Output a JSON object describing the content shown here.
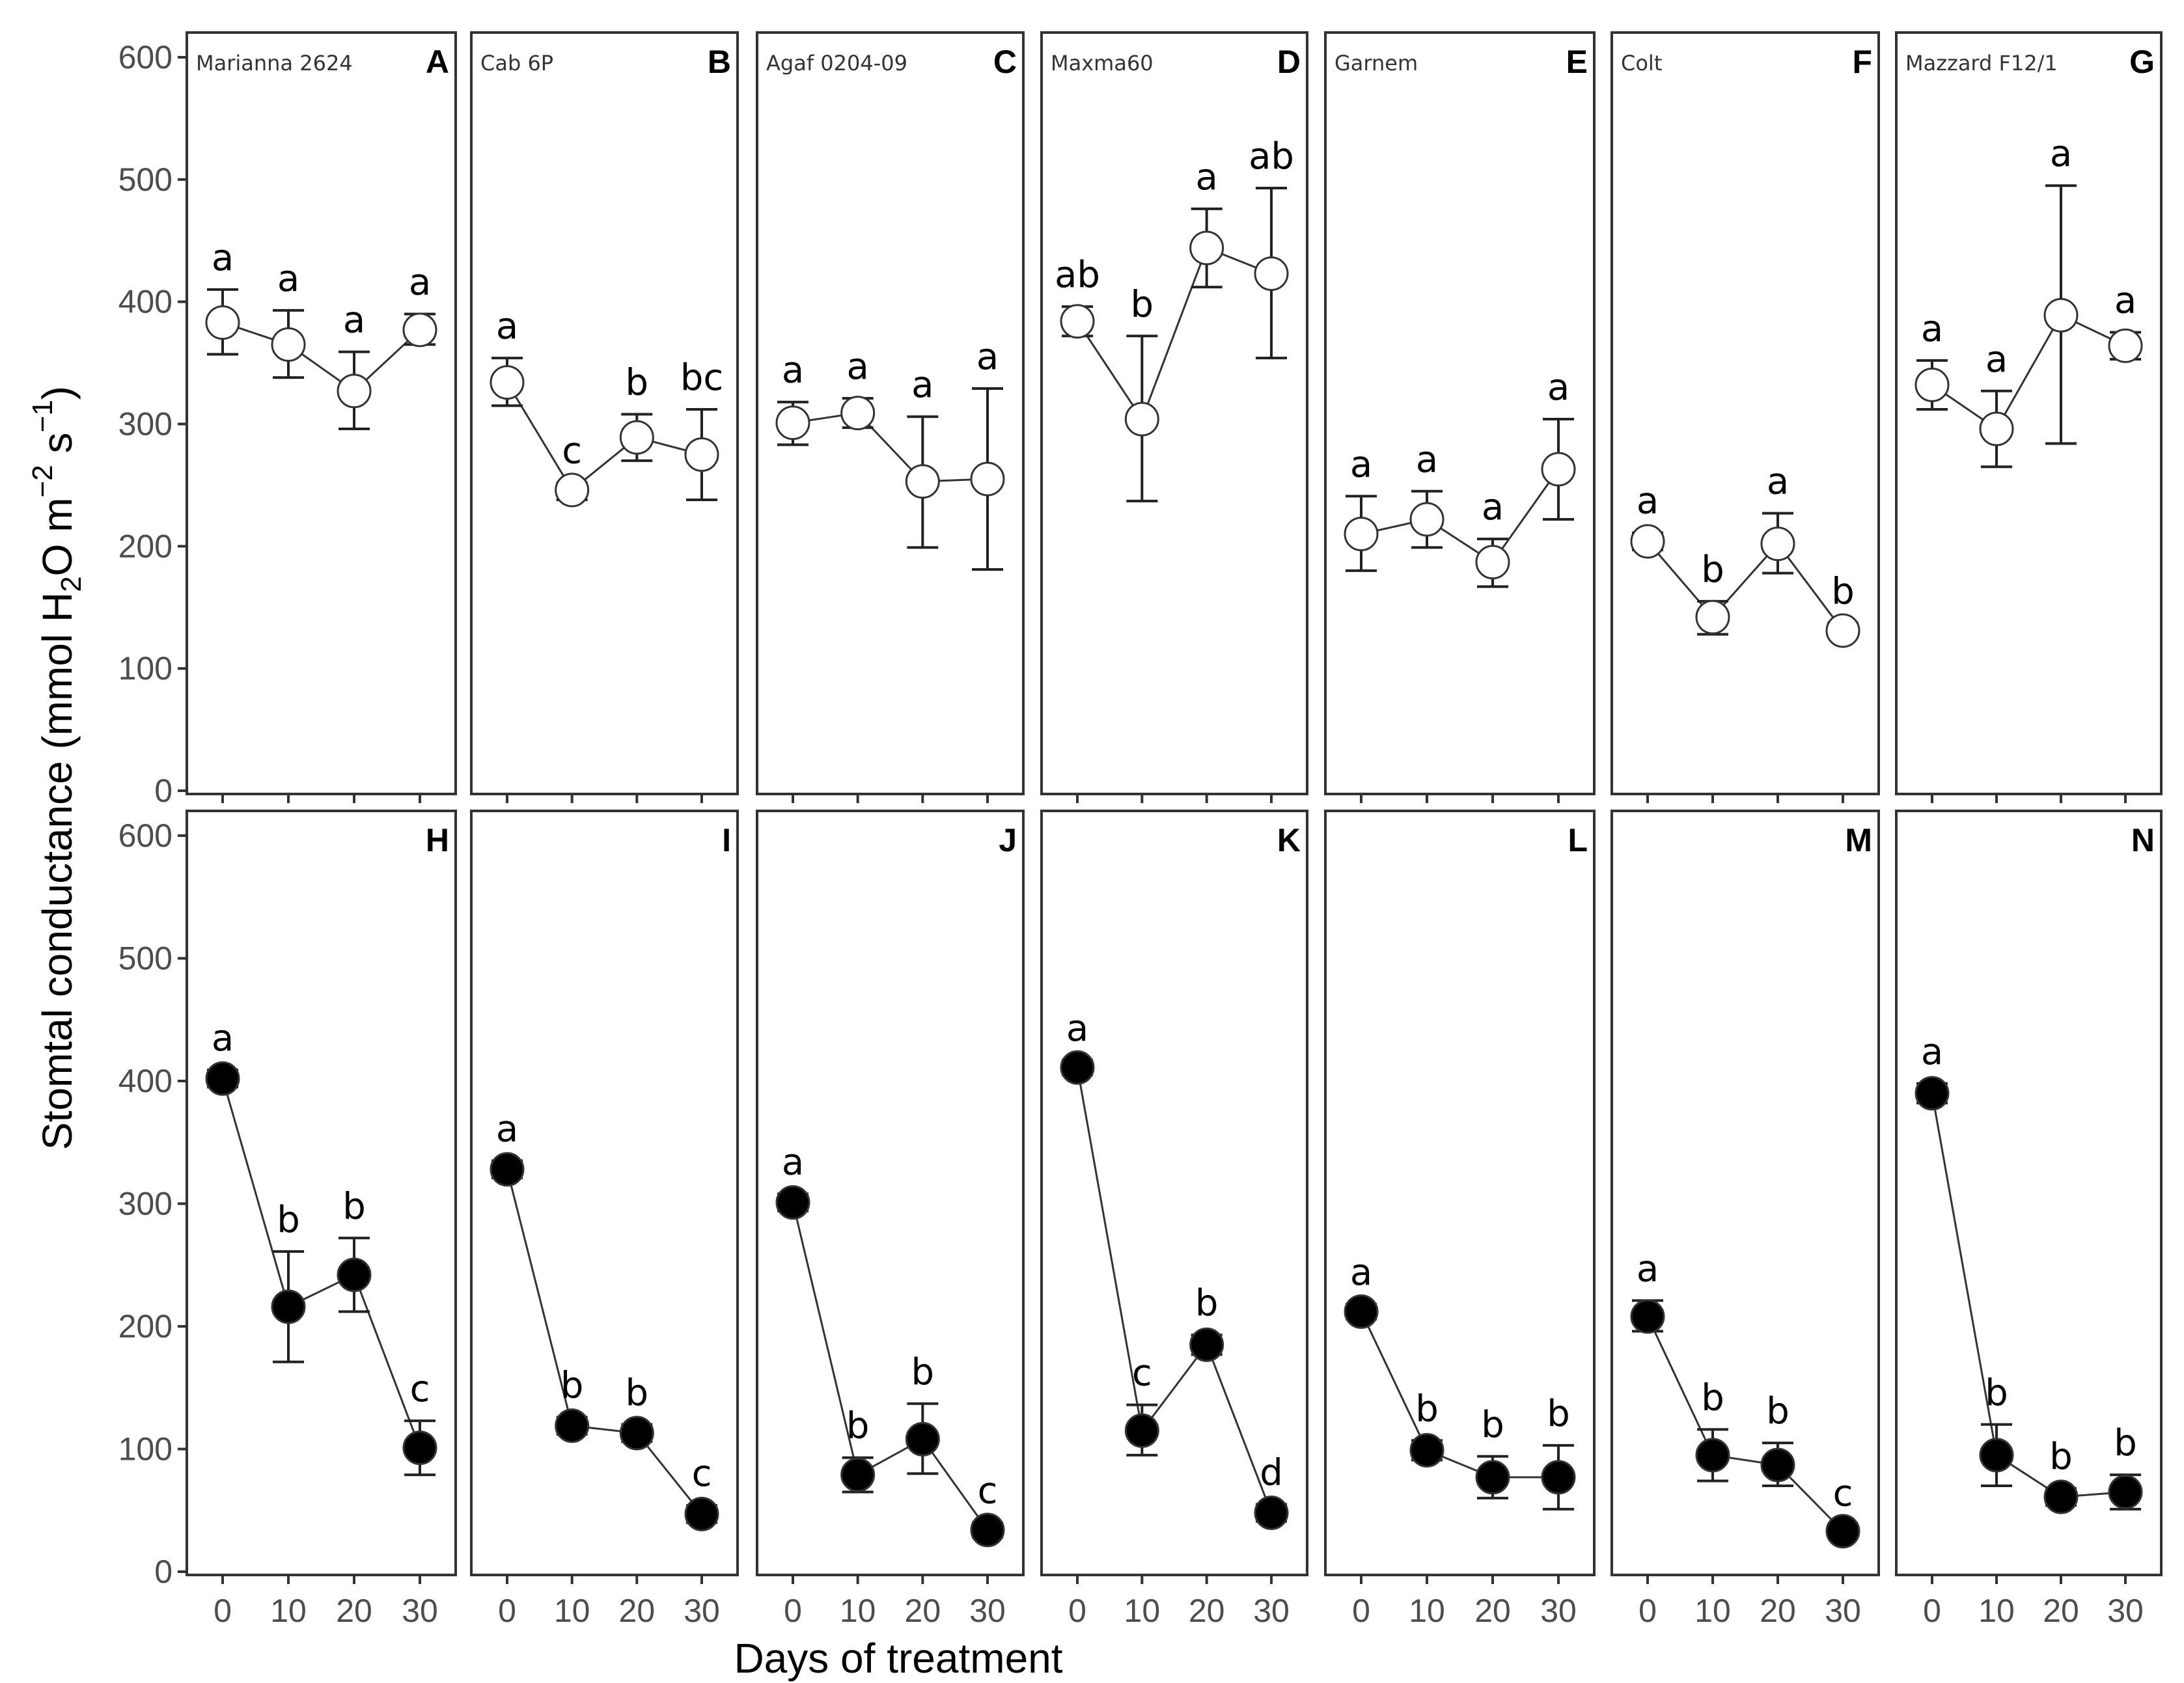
{
  "chart_data": {
    "type": "line",
    "xlabel": "Days of treatment",
    "ylabel_parts": [
      "Stomtal conductance (mmol H",
      "2",
      "O m",
      "−2",
      " s",
      "−1",
      ")"
    ],
    "ylim": [
      0,
      600
    ],
    "y_ticks": [
      0,
      100,
      200,
      300,
      400,
      500,
      600
    ],
    "x_ticks": [
      0,
      10,
      20,
      30
    ],
    "rows": [
      {
        "marker": "open",
        "panels": [
          {
            "letter": "A",
            "cultivar": "Marianna 2624",
            "y": [
              383,
              365,
              327,
              377
            ],
            "lower": [
              357,
              338,
              296,
              365
            ],
            "upper": [
              410,
              393,
              359,
              390
            ],
            "letters": [
              "a",
              "a",
              "a",
              "a"
            ]
          },
          {
            "letter": "B",
            "cultivar": "Cab 6P",
            "y": [
              334,
              246,
              289,
              275
            ],
            "lower": [
              315,
              238,
              270,
              238
            ],
            "upper": [
              354,
              252,
              308,
              312
            ],
            "letters": [
              "a",
              "c",
              "b",
              "bc"
            ]
          },
          {
            "letter": "C",
            "cultivar": "Agaf 0204-09",
            "y": [
              301,
              309,
              253,
              255
            ],
            "lower": [
              283,
              297,
              199,
              181
            ],
            "upper": [
              318,
              321,
              306,
              329
            ],
            "letters": [
              "a",
              "a",
              "a",
              "a"
            ]
          },
          {
            "letter": "D",
            "cultivar": "Maxma60",
            "y": [
              384,
              304,
              444,
              423
            ],
            "lower": [
              372,
              237,
              412,
              354
            ],
            "upper": [
              396,
              372,
              476,
              493
            ],
            "letters": [
              "ab",
              "b",
              "a",
              "ab"
            ]
          },
          {
            "letter": "E",
            "cultivar": "Garnem",
            "y": [
              210,
              222,
              187,
              263
            ],
            "lower": [
              180,
              199,
              167,
              222
            ],
            "upper": [
              241,
              245,
              206,
              304
            ],
            "letters": [
              "a",
              "a",
              "a",
              "a"
            ]
          },
          {
            "letter": "F",
            "cultivar": "Colt",
            "y": [
              204,
              142,
              202,
              131
            ],
            "lower": [
              197,
              128,
              178,
              126
            ],
            "upper": [
              211,
              155,
              227,
              137
            ],
            "letters": [
              "a",
              "b",
              "a",
              "b"
            ]
          },
          {
            "letter": "G",
            "cultivar": "Mazzard F12/1",
            "y": [
              332,
              296,
              389,
              364
            ],
            "lower": [
              312,
              265,
              284,
              353
            ],
            "upper": [
              352,
              327,
              495,
              375
            ],
            "letters": [
              "a",
              "a",
              "a",
              "a"
            ]
          }
        ]
      },
      {
        "marker": "filled",
        "panels": [
          {
            "letter": "H",
            "cultivar": "",
            "y": [
              402,
              216,
              242,
              101
            ],
            "lower": [
              395,
              171,
              212,
              79
            ],
            "upper": [
              409,
              261,
              272,
              123
            ],
            "letters": [
              "a",
              "b",
              "b",
              "c"
            ]
          },
          {
            "letter": "I",
            "cultivar": "",
            "y": [
              328,
              119,
              113,
              47
            ],
            "lower": [
              321,
              112,
              106,
              40
            ],
            "upper": [
              335,
              126,
              120,
              54
            ],
            "letters": [
              "a",
              "b",
              "b",
              "c"
            ]
          },
          {
            "letter": "J",
            "cultivar": "",
            "y": [
              301,
              79,
              108,
              34
            ],
            "lower": [
              294,
              65,
              80,
              28
            ],
            "upper": [
              308,
              93,
              137,
              40
            ],
            "letters": [
              "a",
              "b",
              "b",
              "c"
            ]
          },
          {
            "letter": "K",
            "cultivar": "",
            "y": [
              411,
              115,
              185,
              48
            ],
            "lower": [
              405,
              95,
              177,
              41
            ],
            "upper": [
              417,
              136,
              193,
              55
            ],
            "letters": [
              "a",
              "c",
              "b",
              "d"
            ]
          },
          {
            "letter": "L",
            "cultivar": "",
            "y": [
              212,
              99,
              77,
              77
            ],
            "lower": [
              206,
              91,
              60,
              51
            ],
            "upper": [
              218,
              107,
              94,
              103
            ],
            "letters": [
              "a",
              "b",
              "b",
              "b"
            ]
          },
          {
            "letter": "M",
            "cultivar": "",
            "y": [
              208,
              95,
              87,
              33
            ],
            "lower": [
              196,
              74,
              70,
              28
            ],
            "upper": [
              221,
              116,
              105,
              38
            ],
            "letters": [
              "a",
              "b",
              "b",
              "c"
            ]
          },
          {
            "letter": "N",
            "cultivar": "",
            "y": [
              390,
              95,
              61,
              65
            ],
            "lower": [
              382,
              70,
              54,
              51
            ],
            "upper": [
              398,
              120,
              68,
              79
            ],
            "letters": [
              "a",
              "b",
              "b",
              "b"
            ]
          }
        ]
      }
    ]
  }
}
